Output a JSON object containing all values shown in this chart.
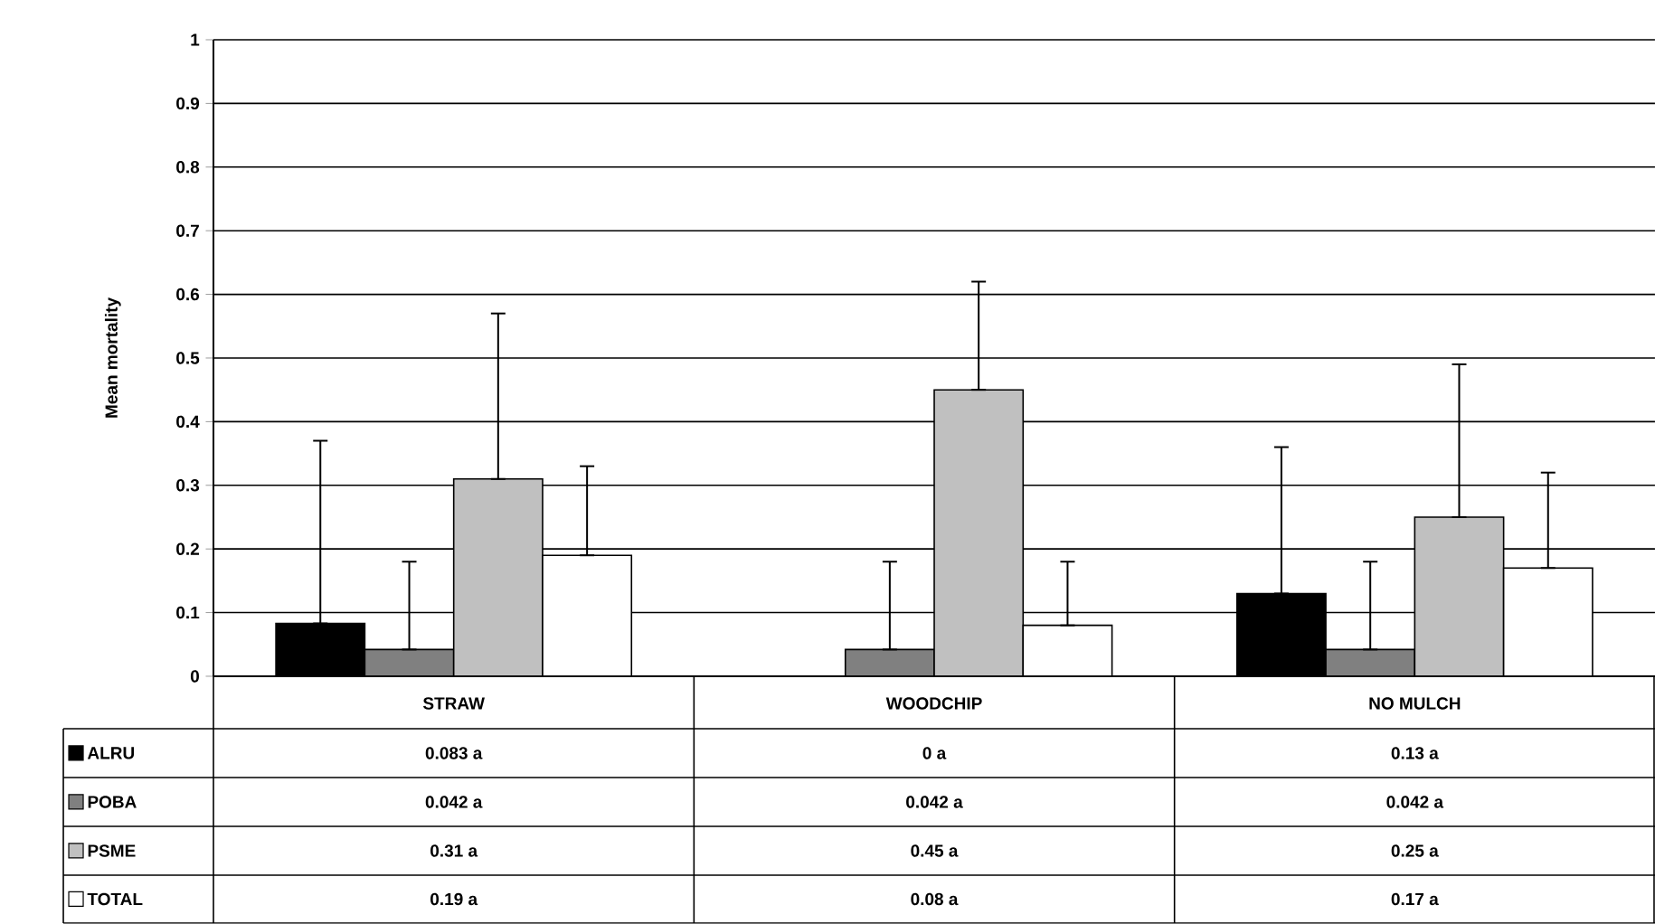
{
  "chart_data": {
    "type": "bar",
    "ylabel": "Mean mortality",
    "categories": [
      "STRAW",
      "WOODCHIP",
      "NO MULCH"
    ],
    "series": [
      {
        "name": "ALRU",
        "color": "#000000",
        "values": [
          0.083,
          0,
          0.13
        ],
        "errors": [
          [
            0.083,
            0.37
          ],
          null,
          [
            0.13,
            0.36
          ]
        ],
        "value_labels": [
          "0.083 a",
          "0 a",
          "0.13 a"
        ]
      },
      {
        "name": "POBA",
        "color": "#808080",
        "values": [
          0.042,
          0.042,
          0.042
        ],
        "errors": [
          [
            0.042,
            0.18
          ],
          [
            0.042,
            0.18
          ],
          [
            0.042,
            0.18
          ]
        ],
        "value_labels": [
          "0.042 a",
          "0.042 a",
          "0.042 a"
        ]
      },
      {
        "name": "PSME",
        "color": "#c0c0c0",
        "values": [
          0.31,
          0.45,
          0.25
        ],
        "errors": [
          [
            0.31,
            0.57
          ],
          [
            0.45,
            0.62
          ],
          [
            0.25,
            0.49
          ]
        ],
        "value_labels": [
          "0.31 a",
          "0.45 a",
          "0.25 a"
        ]
      },
      {
        "name": "TOTAL",
        "color": "#ffffff",
        "values": [
          0.19,
          0.08,
          0.17
        ],
        "errors": [
          [
            0.19,
            0.33
          ],
          [
            0.08,
            0.18
          ],
          [
            0.17,
            0.32
          ]
        ],
        "value_labels": [
          "0.19 a",
          "0.08 a",
          "0.17 a"
        ]
      }
    ],
    "ylim": [
      0,
      1
    ],
    "yticks": [
      0,
      0.1,
      0.2,
      0.3,
      0.4,
      0.5,
      0.6,
      0.7,
      0.8,
      0.9,
      1
    ],
    "grid": "y",
    "legend": "bottom"
  }
}
